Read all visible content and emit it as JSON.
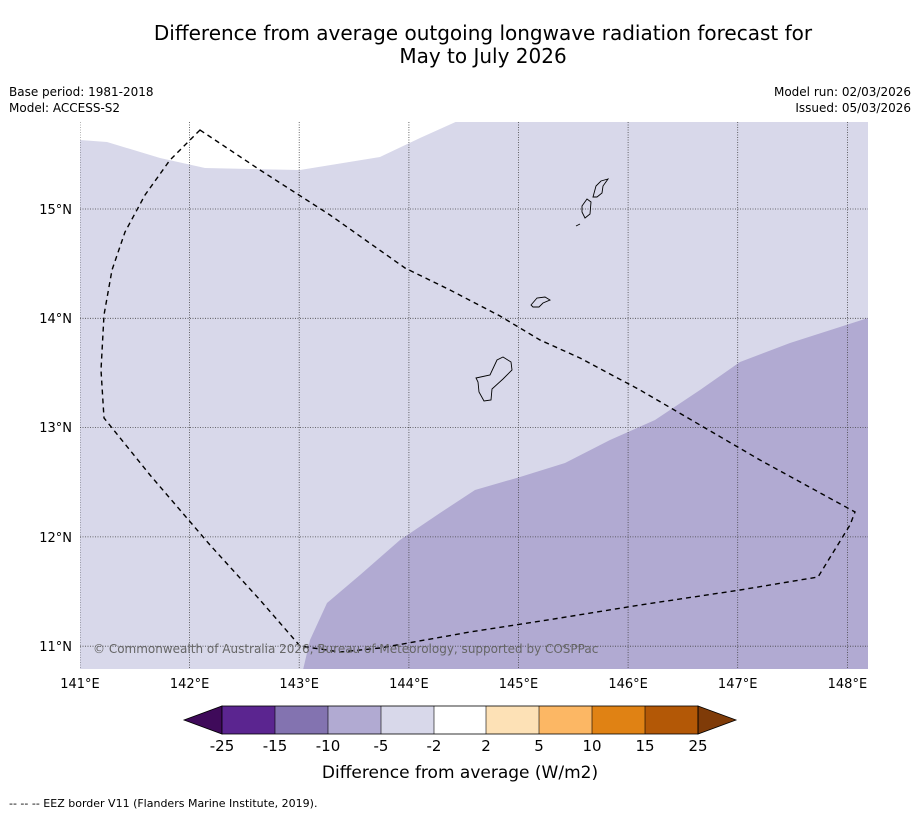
{
  "title_line1": "Difference from average outgoing longwave radiation forecast for",
  "title_line2": "May to July 2026",
  "base_period": "Base period: 1981-2018",
  "model": "Model: ACCESS-S2",
  "model_run": "Model run: 02/03/2026",
  "issued": "Issued: 05/03/2026",
  "copyright": "© Commonwealth of Australia 2026, Bureau of Meteorology, supported by COSPPac",
  "colorbar": {
    "label": "Difference from average (W/m2)",
    "ticks": [
      "-25",
      "-15",
      "-10",
      "-5",
      "-2",
      "2",
      "5",
      "10",
      "15",
      "25"
    ],
    "colors": [
      "#3f0a5a",
      "#5b2590",
      "#8373b0",
      "#b1aad2",
      "#d8d8ea",
      "#ffffff",
      "#fde1b6",
      "#fcb764",
      "#e08214",
      "#b35806",
      "#7f3b08"
    ]
  },
  "footer": "--  --  -- EEZ border V11 (Flanders Marine Institute, 2019).",
  "chart_data": {
    "type": "map",
    "lon_range": [
      141.0,
      148.2
    ],
    "lat_range": [
      10.8,
      15.8
    ],
    "x_ticks": [
      "141°E",
      "142°E",
      "143°E",
      "144°E",
      "145°E",
      "146°E",
      "147°E",
      "148°E"
    ],
    "y_ticks": [
      "11°N",
      "12°N",
      "13°N",
      "14°N",
      "15°N"
    ],
    "background_class": "-5 to -2",
    "region_class": "-10 to -5"
  }
}
